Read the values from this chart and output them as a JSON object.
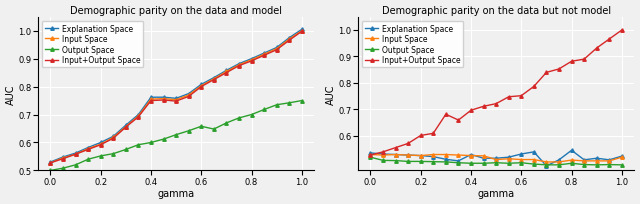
{
  "title1": "Demographic parity on the data and model",
  "title2": "Demographic parity on the data but not model",
  "xlabel": "gamma",
  "ylabel": "AUC",
  "gamma": [
    0.0,
    0.05,
    0.1,
    0.15,
    0.2,
    0.25,
    0.3,
    0.35,
    0.4,
    0.45,
    0.5,
    0.55,
    0.6,
    0.65,
    0.7,
    0.75,
    0.8,
    0.85,
    0.9,
    0.95,
    1.0
  ],
  "plot1": {
    "explanation": [
      0.53,
      0.548,
      0.562,
      0.582,
      0.6,
      0.622,
      0.662,
      0.7,
      0.762,
      0.762,
      0.758,
      0.775,
      0.808,
      0.832,
      0.858,
      0.882,
      0.9,
      0.92,
      0.94,
      0.975,
      1.005
    ],
    "input": [
      0.527,
      0.545,
      0.558,
      0.578,
      0.594,
      0.618,
      0.657,
      0.695,
      0.755,
      0.757,
      0.753,
      0.77,
      0.803,
      0.828,
      0.854,
      0.878,
      0.896,
      0.916,
      0.936,
      0.97,
      1.0
    ],
    "output": [
      0.5,
      0.508,
      0.52,
      0.54,
      0.552,
      0.56,
      0.575,
      0.592,
      0.6,
      0.612,
      0.628,
      0.642,
      0.658,
      0.648,
      0.67,
      0.688,
      0.7,
      0.718,
      0.735,
      0.742,
      0.75
    ],
    "input_output": [
      0.527,
      0.542,
      0.558,
      0.575,
      0.592,
      0.615,
      0.655,
      0.692,
      0.75,
      0.752,
      0.748,
      0.765,
      0.8,
      0.825,
      0.85,
      0.875,
      0.892,
      0.912,
      0.932,
      0.966,
      0.998
    ]
  },
  "plot2": {
    "explanation": [
      0.536,
      0.532,
      0.53,
      0.528,
      0.526,
      0.522,
      0.512,
      0.506,
      0.53,
      0.516,
      0.516,
      0.52,
      0.532,
      0.54,
      0.487,
      0.51,
      0.546,
      0.51,
      0.516,
      0.51,
      0.524
    ],
    "input": [
      0.53,
      0.528,
      0.53,
      0.528,
      0.526,
      0.53,
      0.53,
      0.528,
      0.526,
      0.525,
      0.511,
      0.514,
      0.511,
      0.511,
      0.502,
      0.502,
      0.509,
      0.506,
      0.506,
      0.506,
      0.52
    ],
    "output": [
      0.52,
      0.508,
      0.507,
      0.504,
      0.504,
      0.503,
      0.502,
      0.499,
      0.497,
      0.497,
      0.499,
      0.497,
      0.499,
      0.494,
      0.491,
      0.491,
      0.497,
      0.492,
      0.491,
      0.492,
      0.491
    ],
    "input_output": [
      0.528,
      0.54,
      0.556,
      0.572,
      0.602,
      0.61,
      0.682,
      0.66,
      0.697,
      0.712,
      0.722,
      0.748,
      0.752,
      0.787,
      0.84,
      0.853,
      0.882,
      0.89,
      0.932,
      0.966,
      1.0
    ]
  },
  "colors": {
    "explanation": "#1f77b4",
    "input": "#ff7f0e",
    "output": "#2ca02c",
    "input_output": "#d62728"
  },
  "legend_labels": [
    "Explanation Space",
    "Input Space",
    "Output Space",
    "Input+Output Space"
  ],
  "ylim1": [
    0.5,
    1.05
  ],
  "ylim2": [
    0.47,
    1.05
  ],
  "yticks1": [
    0.5,
    0.6,
    0.7,
    0.8,
    0.9,
    1.0
  ],
  "yticks2": [
    0.6,
    0.7,
    0.8,
    0.9,
    1.0
  ],
  "xticks": [
    0.0,
    0.2,
    0.4,
    0.6,
    0.8,
    1.0
  ],
  "marker": "^",
  "markersize": 2.5,
  "linewidth": 1.0,
  "bg_color": "#f0f0f0",
  "title_fontsize": 7,
  "label_fontsize": 7,
  "tick_fontsize": 6,
  "legend_fontsize": 5.5
}
